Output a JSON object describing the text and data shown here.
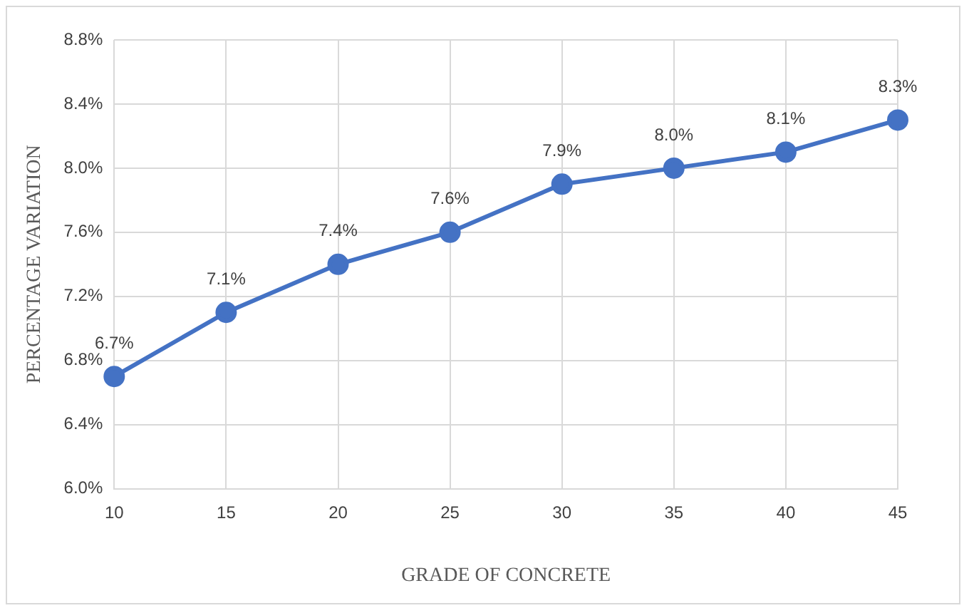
{
  "chart_data": {
    "type": "line",
    "xlabel": "GRADE OF CONCRETE",
    "ylabel": "PERCENTAGE VARIATION",
    "categories": [
      "10",
      "15",
      "20",
      "25",
      "30",
      "35",
      "40",
      "45"
    ],
    "series": [
      {
        "color": "#4472c4",
        "values": [
          6.7,
          7.1,
          7.4,
          7.6,
          7.9,
          8.0,
          8.1,
          8.3
        ],
        "value_labels": [
          "6.7%",
          "7.1%",
          "7.4%",
          "7.6%",
          "7.9%",
          "8.0%",
          "8.1%",
          "8.3%"
        ]
      }
    ],
    "ylim": [
      6.0,
      8.8
    ],
    "yticks": [
      {
        "value": 6.0,
        "label": "6.0%"
      },
      {
        "value": 6.4,
        "label": "6.4%"
      },
      {
        "value": 6.8,
        "label": "6.8%"
      },
      {
        "value": 7.2,
        "label": "7.2%"
      },
      {
        "value": 7.6,
        "label": "7.6%"
      },
      {
        "value": 8.0,
        "label": "8.0%"
      },
      {
        "value": 8.4,
        "label": "8.4%"
      },
      {
        "value": 8.8,
        "label": "8.8%"
      }
    ],
    "grid": true,
    "legend": false,
    "marker": "circle",
    "line_style": "solid"
  }
}
